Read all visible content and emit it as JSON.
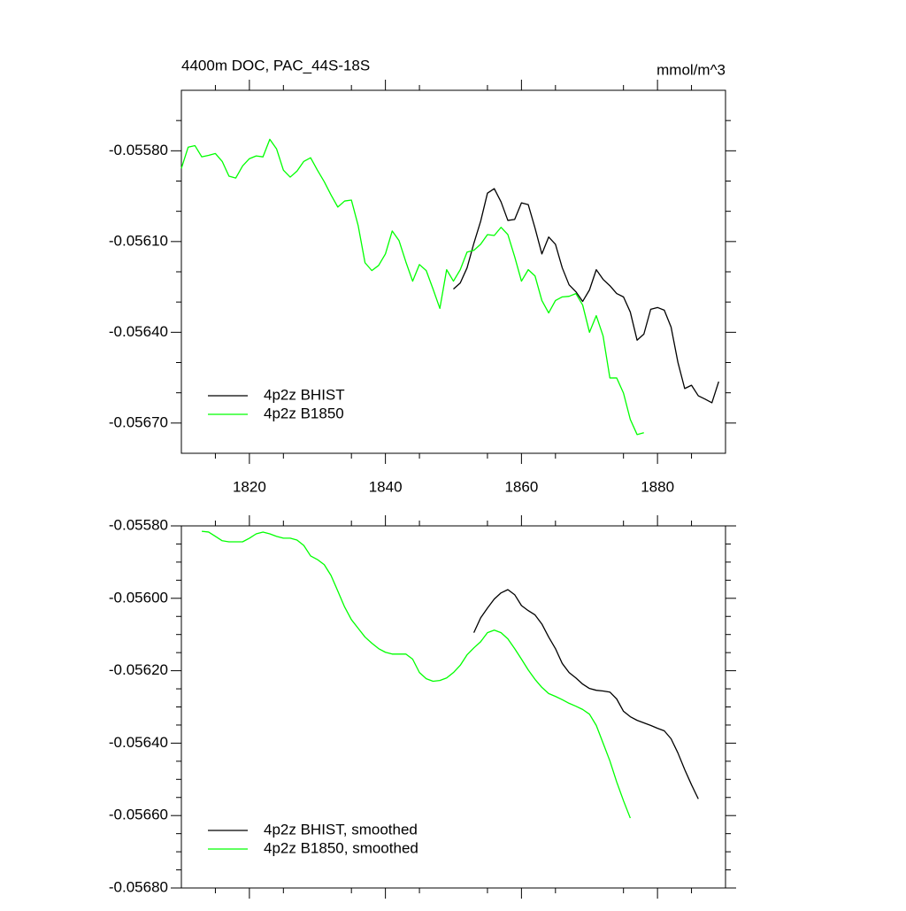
{
  "chart_data": [
    {
      "type": "line",
      "title": "4400m DOC, PAC_44S-18S",
      "units": "mmol/m^3",
      "xlim": [
        1810,
        1890
      ],
      "xticks": [
        1820,
        1840,
        1860,
        1880
      ],
      "xminorticks": [
        1815,
        1825,
        1835,
        1845,
        1855,
        1865,
        1875,
        1885
      ],
      "ylim": [
        -0.0568,
        -0.0556
      ],
      "yticks": [
        {
          "value": -0.0558,
          "label": "-0.05580"
        },
        {
          "value": -0.0561,
          "label": "-0.05610"
        },
        {
          "value": -0.0564,
          "label": "-0.05640"
        },
        {
          "value": -0.0567,
          "label": "-0.05670"
        }
      ],
      "yminorticks": [
        -0.0557,
        -0.0559,
        -0.056,
        -0.0562,
        -0.0563,
        -0.0565,
        -0.0566
      ],
      "legend": "lower left",
      "series": [
        {
          "name": "4p2z BHIST",
          "color": "#000000",
          "x": [
            1850,
            1851,
            1852,
            1853,
            1854,
            1855,
            1856,
            1857,
            1858,
            1859,
            1860,
            1861,
            1862,
            1863,
            1864,
            1865,
            1866,
            1867,
            1868,
            1869,
            1870,
            1871,
            1872,
            1873,
            1874,
            1875,
            1876,
            1877,
            1878,
            1879,
            1880,
            1881,
            1882,
            1883,
            1884,
            1885,
            1886,
            1887,
            1888,
            1889
          ],
          "values": [
            -0.056257,
            -0.056237,
            -0.056187,
            -0.056106,
            -0.056033,
            -0.05594,
            -0.055925,
            -0.055969,
            -0.05603,
            -0.056027,
            -0.055972,
            -0.055978,
            -0.056056,
            -0.056141,
            -0.056085,
            -0.056109,
            -0.056187,
            -0.056243,
            -0.056266,
            -0.056298,
            -0.05626,
            -0.056193,
            -0.056225,
            -0.056246,
            -0.056272,
            -0.056283,
            -0.056333,
            -0.056426,
            -0.056406,
            -0.056324,
            -0.056318,
            -0.056327,
            -0.056383,
            -0.056499,
            -0.056586,
            -0.056575,
            -0.05661,
            -0.056621,
            -0.056633,
            -0.056563
          ]
        },
        {
          "name": "4p2z B1850",
          "color": "#00ff00",
          "x": [
            1810,
            1811,
            1812,
            1813,
            1814,
            1815,
            1816,
            1817,
            1818,
            1819,
            1820,
            1821,
            1822,
            1823,
            1824,
            1825,
            1826,
            1827,
            1828,
            1829,
            1830,
            1831,
            1832,
            1833,
            1834,
            1835,
            1836,
            1837,
            1838,
            1839,
            1840,
            1841,
            1842,
            1843,
            1844,
            1845,
            1846,
            1847,
            1848,
            1849,
            1850,
            1851,
            1852,
            1853,
            1854,
            1855,
            1856,
            1857,
            1858,
            1859,
            1860,
            1861,
            1862,
            1863,
            1864,
            1865,
            1866,
            1867,
            1868,
            1869,
            1870,
            1871,
            1872,
            1873,
            1874,
            1875,
            1876,
            1877,
            1878
          ],
          "values": [
            -0.055858,
            -0.055788,
            -0.055783,
            -0.05582,
            -0.055815,
            -0.055809,
            -0.055835,
            -0.055884,
            -0.05589,
            -0.05585,
            -0.055826,
            -0.055817,
            -0.05582,
            -0.055762,
            -0.055794,
            -0.055864,
            -0.055887,
            -0.055867,
            -0.055835,
            -0.055823,
            -0.055864,
            -0.055902,
            -0.055946,
            -0.055986,
            -0.055966,
            -0.055963,
            -0.056048,
            -0.05617,
            -0.056196,
            -0.056179,
            -0.056141,
            -0.056065,
            -0.056097,
            -0.056167,
            -0.056231,
            -0.056176,
            -0.056196,
            -0.056257,
            -0.056321,
            -0.056193,
            -0.056231,
            -0.056193,
            -0.056135,
            -0.056129,
            -0.056109,
            -0.056077,
            -0.05608,
            -0.056053,
            -0.056077,
            -0.05615,
            -0.056231,
            -0.056193,
            -0.056214,
            -0.056295,
            -0.056336,
            -0.056295,
            -0.056283,
            -0.056281,
            -0.056272,
            -0.05631,
            -0.0564,
            -0.056345,
            -0.056412,
            -0.056551,
            -0.056551,
            -0.056601,
            -0.056688,
            -0.056738,
            -0.056732
          ]
        }
      ]
    },
    {
      "type": "line",
      "xlim": [
        1810,
        1890
      ],
      "ylim": [
        -0.0568,
        -0.0558
      ],
      "yticks": [
        {
          "value": -0.0558,
          "label": "-0.05580"
        },
        {
          "value": -0.056,
          "label": "-0.05600"
        },
        {
          "value": -0.0562,
          "label": "-0.05620"
        },
        {
          "value": -0.0564,
          "label": "-0.05640"
        },
        {
          "value": -0.0566,
          "label": "-0.05660"
        },
        {
          "value": -0.0568,
          "label": "-0.05680"
        }
      ],
      "yminorticks": [
        -0.05585,
        -0.0559,
        -0.05595,
        -0.05605,
        -0.0561,
        -0.05615,
        -0.05625,
        -0.0563,
        -0.05635,
        -0.05645,
        -0.0565,
        -0.05655,
        -0.05665,
        -0.0567,
        -0.05675
      ],
      "legend": "lower left",
      "series": [
        {
          "name": "4p2z BHIST, smoothed",
          "color": "#000000",
          "x": [
            1853,
            1854,
            1855,
            1856,
            1857,
            1858,
            1859,
            1860,
            1861,
            1862,
            1863,
            1864,
            1865,
            1866,
            1867,
            1868,
            1869,
            1870,
            1871,
            1872,
            1873,
            1874,
            1875,
            1876,
            1877,
            1878,
            1879,
            1880,
            1881,
            1882,
            1883,
            1884,
            1885,
            1886
          ],
          "values": [
            -0.056095,
            -0.056054,
            -0.056027,
            -0.056002,
            -0.055985,
            -0.055976,
            -0.05599,
            -0.05602,
            -0.056034,
            -0.056046,
            -0.056071,
            -0.056107,
            -0.056139,
            -0.05618,
            -0.056205,
            -0.05622,
            -0.056237,
            -0.056249,
            -0.056254,
            -0.056256,
            -0.056259,
            -0.056278,
            -0.056312,
            -0.056327,
            -0.056337,
            -0.056344,
            -0.056351,
            -0.056359,
            -0.056366,
            -0.056388,
            -0.056427,
            -0.056473,
            -0.056515,
            -0.056554
          ]
        },
        {
          "name": "4p2z B1850, smoothed",
          "color": "#00ff00",
          "x": [
            1813,
            1814,
            1815,
            1816,
            1817,
            1818,
            1819,
            1820,
            1821,
            1822,
            1823,
            1824,
            1825,
            1826,
            1827,
            1828,
            1829,
            1830,
            1831,
            1832,
            1833,
            1834,
            1835,
            1836,
            1837,
            1838,
            1839,
            1840,
            1841,
            1842,
            1843,
            1844,
            1845,
            1846,
            1847,
            1848,
            1849,
            1850,
            1851,
            1852,
            1853,
            1854,
            1855,
            1856,
            1857,
            1858,
            1859,
            1860,
            1861,
            1862,
            1863,
            1864,
            1865,
            1866,
            1867,
            1868,
            1869,
            1870,
            1871,
            1872,
            1873,
            1874,
            1875,
            1876
          ],
          "values": [
            -0.055815,
            -0.055817,
            -0.055829,
            -0.055841,
            -0.055844,
            -0.055844,
            -0.055844,
            -0.055834,
            -0.055822,
            -0.055817,
            -0.055822,
            -0.055829,
            -0.055834,
            -0.055834,
            -0.055839,
            -0.055854,
            -0.055883,
            -0.055893,
            -0.055907,
            -0.055937,
            -0.05598,
            -0.056024,
            -0.056059,
            -0.056083,
            -0.056107,
            -0.056124,
            -0.056139,
            -0.056149,
            -0.056154,
            -0.056154,
            -0.056154,
            -0.056168,
            -0.056205,
            -0.056222,
            -0.056229,
            -0.056227,
            -0.05622,
            -0.056205,
            -0.056185,
            -0.056156,
            -0.056137,
            -0.05612,
            -0.056095,
            -0.056088,
            -0.056095,
            -0.056112,
            -0.056139,
            -0.056168,
            -0.056198,
            -0.056224,
            -0.056246,
            -0.056263,
            -0.056271,
            -0.05628,
            -0.05629,
            -0.056298,
            -0.056307,
            -0.05632,
            -0.056351,
            -0.0564,
            -0.056449,
            -0.056507,
            -0.056559,
            -0.056607
          ]
        }
      ]
    }
  ]
}
